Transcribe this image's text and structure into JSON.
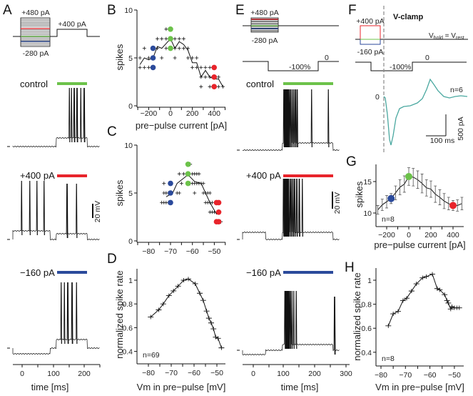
{
  "colors": {
    "control": "#6cc24a",
    "plus400": "#e8242b",
    "minus160": "#2b4a9b",
    "trace": "#111111",
    "vclamp_trace": "#4aa8a0"
  },
  "panels": {
    "A": {
      "label": "A",
      "protocol_top": "+480 pA",
      "protocol_bottom": "-280 pA",
      "test_pulse": "+400 pA",
      "traces": [
        {
          "label": "control",
          "color_key": "control",
          "spikes_ms": [
            152,
            159,
            168,
            177,
            189,
            200
          ]
        },
        {
          "label": "+400 pA",
          "color_key": "plus400",
          "spikes_ms": [
            -37,
            -2,
            25,
            48,
            71,
            145,
            175
          ]
        },
        {
          "label": "−160 pA",
          "color_key": "minus160",
          "spikes_ms": [
            126,
            136,
            147,
            161,
            175
          ]
        }
      ],
      "scale_bar": "20 mV",
      "x_ticks": [
        "0",
        "100",
        "200"
      ],
      "xlabel": "time [ms]"
    },
    "E": {
      "label": "E",
      "protocol_top": "+480 pA",
      "protocol_bottom": "-280 pA",
      "step_zero": "0",
      "step_neg": "-100%",
      "traces": [
        {
          "label": "control",
          "color_key": "control",
          "spikes_ms": [
            100,
            102,
            104,
            106,
            108,
            110,
            113,
            116,
            119,
            123,
            127,
            132,
            137,
            143,
            190,
            245
          ]
        },
        {
          "label": "+400 pA",
          "color_key": "plus400",
          "spikes_ms": [
            98,
            100,
            102,
            104,
            106,
            108,
            110,
            113,
            116,
            120,
            124,
            129,
            135,
            142,
            150,
            160
          ]
        },
        {
          "label": "−160 pA",
          "color_key": "minus160",
          "spikes_ms": [
            103,
            105,
            107,
            109,
            111,
            114,
            117,
            121,
            126,
            132,
            140,
            265
          ]
        }
      ],
      "scale_bar": "20 mV",
      "x_ticks": [
        "0",
        "100",
        "200",
        "300"
      ],
      "xlabel": "time [ms]"
    },
    "F": {
      "label": "F",
      "title": "V-clamp",
      "protocol_top": "+400 pA",
      "protocol_bottom": "-160 pA",
      "vhold": "V",
      "vhold_sub": "hold",
      "veq": " = V",
      "vrest_sub": "rest",
      "step_zero": "0",
      "step_neg": "-100%",
      "zero_label": "0",
      "n": "n=6",
      "scale_y": "500 pA",
      "scale_x": "100 ms"
    }
  },
  "chart_data": [
    {
      "panel": "B",
      "type": "scatter",
      "xlabel": "pre−pulse current [pA]",
      "ylabel": "spikes",
      "xlim": [
        -300,
        500
      ],
      "ylim": [
        0,
        10
      ],
      "x_ticks": [
        -200,
        0,
        200,
        400
      ],
      "y_ticks": [
        0,
        5,
        10
      ],
      "mean_line": {
        "x": [
          -280,
          -240,
          -200,
          -160,
          -120,
          -80,
          -40,
          0,
          40,
          80,
          120,
          160,
          200,
          240,
          280,
          320,
          360,
          400,
          440,
          480
        ],
        "y": [
          4.3,
          5,
          4.8,
          5,
          6.2,
          6,
          6.5,
          7,
          6,
          6.7,
          6.4,
          5.8,
          4.5,
          4.5,
          3,
          3.7,
          3,
          2.8,
          2.8,
          2
        ]
      },
      "points": [
        [
          -280,
          4
        ],
        [
          -280,
          5
        ],
        [
          -240,
          4
        ],
        [
          -240,
          6
        ],
        [
          -200,
          4
        ],
        [
          -200,
          5
        ],
        [
          -120,
          6
        ],
        [
          -120,
          7
        ],
        [
          -80,
          7
        ],
        [
          -80,
          5
        ],
        [
          -40,
          7
        ],
        [
          -40,
          6
        ],
        [
          -40,
          8
        ],
        [
          40,
          7
        ],
        [
          40,
          5
        ],
        [
          40,
          6
        ],
        [
          80,
          7
        ],
        [
          80,
          6
        ],
        [
          120,
          7
        ],
        [
          120,
          6
        ],
        [
          160,
          6
        ],
        [
          160,
          5
        ],
        [
          200,
          5
        ],
        [
          200,
          4
        ],
        [
          240,
          5
        ],
        [
          240,
          4
        ],
        [
          280,
          4
        ],
        [
          280,
          3
        ],
        [
          280,
          2
        ],
        [
          320,
          4
        ],
        [
          320,
          3
        ],
        [
          360,
          4
        ],
        [
          360,
          3
        ],
        [
          360,
          2
        ],
        [
          440,
          3
        ],
        [
          440,
          2
        ],
        [
          480,
          2
        ]
      ],
      "highlight": [
        {
          "x": -160,
          "y": [
            4,
            5,
            6
          ],
          "color_key": "minus160"
        },
        {
          "x": 0,
          "y": [
            6,
            7,
            8
          ],
          "color_key": "control"
        },
        {
          "x": 400,
          "y": [
            2,
            3,
            4
          ],
          "color_key": "plus400"
        }
      ]
    },
    {
      "panel": "C",
      "type": "scatter",
      "xlabel": "",
      "ylabel": "spikes",
      "xlim": [
        -85,
        -45
      ],
      "ylim": [
        0,
        10
      ],
      "x_ticks": [
        -80,
        -70,
        -60,
        -50
      ],
      "y_ticks": [
        0,
        5,
        10
      ],
      "mean_line": {
        "x": [
          -72,
          -69,
          -67,
          -62,
          -59,
          -56,
          -52,
          -49,
          -48
        ],
        "y": [
          4.6,
          5,
          6,
          6.9,
          6.2,
          6,
          4,
          2.8,
          2.9
        ]
      },
      "points": [
        [
          -74,
          4
        ],
        [
          -73,
          4
        ],
        [
          -72,
          4
        ],
        [
          -71,
          4
        ],
        [
          -73,
          5
        ],
        [
          -72,
          5
        ],
        [
          -71,
          5
        ],
        [
          -67,
          5
        ],
        [
          -66,
          5
        ],
        [
          -73,
          6
        ],
        [
          -65,
          6
        ],
        [
          -61,
          6
        ],
        [
          -60,
          6
        ],
        [
          -59,
          6
        ],
        [
          -58,
          6
        ],
        [
          -57,
          6
        ],
        [
          -56,
          6
        ],
        [
          -55,
          6
        ],
        [
          -66,
          7
        ],
        [
          -64,
          7
        ],
        [
          -60,
          7
        ],
        [
          -59,
          7
        ],
        [
          -58,
          7
        ],
        [
          -57,
          7
        ],
        [
          -62,
          8
        ],
        [
          -61,
          8
        ],
        [
          -59,
          5
        ],
        [
          -55,
          5
        ],
        [
          -54,
          5
        ],
        [
          -53,
          5
        ],
        [
          -52,
          5
        ],
        [
          -54,
          4
        ],
        [
          -53,
          4
        ],
        [
          -52,
          4
        ],
        [
          -51,
          4
        ],
        [
          -52,
          3
        ],
        [
          -51,
          3
        ],
        [
          -50,
          3
        ],
        [
          -47,
          2
        ]
      ],
      "highlight": [
        {
          "x": -70,
          "y": [
            4,
            5,
            6
          ],
          "color_key": "minus160"
        },
        {
          "x": -62,
          "y": [
            6,
            7,
            8
          ],
          "color_key": "control"
        },
        {
          "x": -49,
          "y": [
            2,
            4
          ],
          "color_key": "plus400"
        },
        {
          "x": -48,
          "y": [
            2,
            3,
            4
          ],
          "color_key": "plus400"
        }
      ]
    },
    {
      "panel": "D",
      "type": "line",
      "xlabel": "Vm in pre−pulse [mV]",
      "ylabel": "normalized spike rate",
      "annotation": "n=69",
      "xlim": [
        -85,
        -45
      ],
      "ylim": [
        0.35,
        1.1
      ],
      "x_ticks": [
        -80,
        -70,
        -60,
        -50
      ],
      "y_ticks": [
        0.4,
        0.6,
        0.8,
        1
      ],
      "x": [
        -79,
        -75.5,
        -73.5,
        -71,
        -69,
        -67,
        -64.5,
        -62.5,
        -59.5,
        -57.5,
        -56,
        -54.5,
        -53.5,
        -52.5,
        -51.5,
        -50.5,
        -49.5,
        -48
      ],
      "y": [
        0.69,
        0.75,
        0.8,
        0.87,
        0.91,
        0.95,
        1.0,
        1.01,
        0.97,
        0.89,
        0.83,
        0.74,
        0.68,
        0.64,
        0.59,
        0.52,
        0.51,
        0.43
      ]
    },
    {
      "panel": "G",
      "type": "line",
      "xlabel": "pre−pulse current [pA]",
      "ylabel": "spikes",
      "annotation": "n=8",
      "xlim": [
        -300,
        500
      ],
      "ylim": [
        8,
        18
      ],
      "x_ticks": [
        -200,
        0,
        200,
        400
      ],
      "y_ticks": [
        10,
        15
      ],
      "x": [
        -280,
        -240,
        -200,
        -160,
        -120,
        -80,
        -40,
        0,
        40,
        80,
        120,
        160,
        200,
        240,
        280,
        320,
        360,
        400,
        440,
        480
      ],
      "y": [
        10.5,
        11.3,
        11.8,
        12.3,
        13.2,
        14.1,
        14.6,
        15.8,
        15.7,
        15.3,
        14.7,
        14,
        13.8,
        13,
        12.5,
        11.9,
        11.5,
        11.2,
        11.2,
        11.5
      ],
      "err": [
        0.7,
        0.9,
        1,
        0.8,
        1.1,
        1.2,
        1.3,
        1.4,
        1.4,
        1.4,
        1.5,
        1.3,
        1.3,
        1.3,
        1.2,
        1.2,
        1,
        0.8,
        0.9,
        1
      ],
      "highlight": [
        {
          "x": -160,
          "y": [
            12.3
          ],
          "color_key": "minus160"
        },
        {
          "x": 0,
          "y": [
            15.8
          ],
          "color_key": "control"
        },
        {
          "x": 400,
          "y": [
            11.2
          ],
          "color_key": "plus400"
        }
      ]
    },
    {
      "panel": "H",
      "type": "line",
      "xlabel": "Vm in pre−pulse [mV]",
      "ylabel": "normalized spike rate",
      "annotation": "n=8",
      "xlim": [
        -85,
        -45
      ],
      "ylim": [
        0.35,
        1.1
      ],
      "x_ticks": [
        -80,
        -70,
        -60,
        -50
      ],
      "y_ticks": [
        0.4,
        0.6,
        0.8,
        1
      ],
      "x": [
        -77,
        -75,
        -73,
        -71,
        -69.5,
        -67.5,
        -65.5,
        -63,
        -61.5,
        -59,
        -57,
        -56,
        -54,
        -53,
        -52.5,
        -51.5,
        -51,
        -50,
        -49,
        -48
      ],
      "y": [
        0.62,
        0.72,
        0.74,
        0.83,
        0.85,
        0.91,
        0.97,
        1.02,
        1.03,
        1.05,
        0.93,
        0.92,
        0.88,
        0.83,
        0.81,
        0.76,
        0.78,
        0.77,
        0.77,
        0.77
      ]
    }
  ]
}
